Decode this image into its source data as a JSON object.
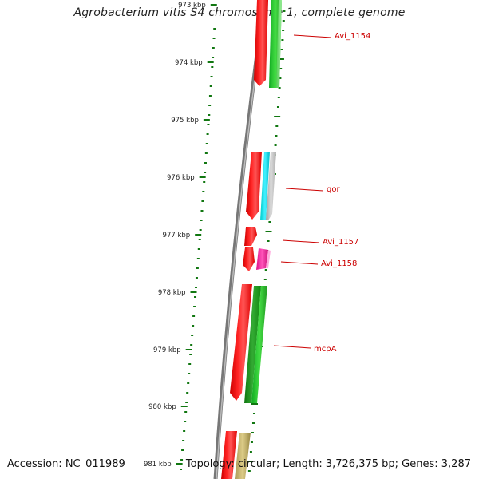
{
  "title": "Agrobacterium vitis S4 chromosome 1, complete genome",
  "footer": {
    "accession": "Accession: NC_011989",
    "summary": "Topology: circular; Length: 3,726,375 bp; Genes: 3,287"
  },
  "ruler": {
    "labels": [
      "973 kbp",
      "974 kbp",
      "975 kbp",
      "976 kbp",
      "977 kbp",
      "978 kbp",
      "979 kbp",
      "980 kbp",
      "981 kbp"
    ]
  },
  "genes": [
    {
      "label": "Avi_1154"
    },
    {
      "label": "qor"
    },
    {
      "label": "Avi_1157"
    },
    {
      "label": "Avi_1158"
    },
    {
      "label": "mcpA"
    }
  ],
  "colors": {
    "forward_cds": "#ee1111",
    "green_feature": "#22bb33",
    "cyan_feature": "#22ddee",
    "gray_feature": "#aaaaaa",
    "magenta_feature": "#ee2299",
    "khaki_feature": "#bbaa66",
    "backbone": "#777777",
    "label_red": "#cc0000",
    "tick_green": "#117711"
  }
}
